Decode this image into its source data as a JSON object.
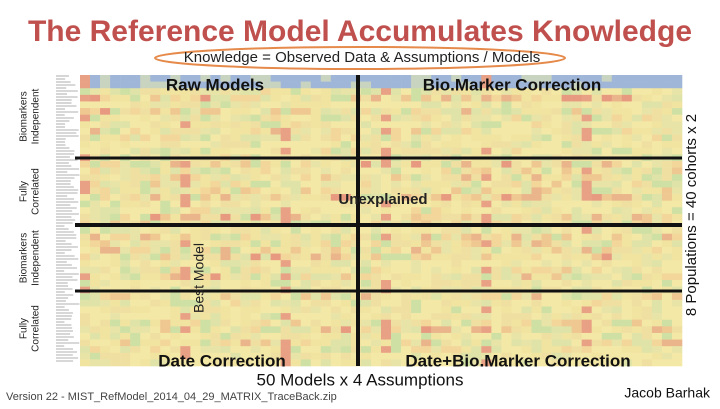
{
  "header": {
    "title": "The Reference Model Accumulates Knowledge",
    "subtitle": "Knowledge = Observed Data & Assumptions / Models"
  },
  "quadrants": {
    "top_left": "Raw Models",
    "top_right": "Bio.Marker Correction",
    "bottom_left": "Date Correction",
    "bottom_right": "Date+Bio.Marker Correction",
    "center": "Unexplained",
    "best": "Best Model"
  },
  "row_groups": [
    {
      "lines": [
        "Biomarkers",
        "Independent"
      ]
    },
    {
      "lines": [
        "Fully",
        "Correlated"
      ]
    },
    {
      "lines": [
        "Biomarkers",
        "Independent"
      ]
    },
    {
      "lines": [
        "Fully",
        "Correlated"
      ]
    }
  ],
  "right_label": "8 Populations = 40 cohorts x 2",
  "bottom_label": "50 Models x 4 Assumptions",
  "footer": {
    "version": "Version 22 -  MIST_RefModel_2014_04_29_MATRIX_TraceBack.zip",
    "author": "Jacob Barhak"
  }
}
